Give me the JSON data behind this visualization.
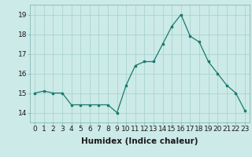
{
  "x": [
    0,
    1,
    2,
    3,
    4,
    5,
    6,
    7,
    8,
    9,
    10,
    11,
    12,
    13,
    14,
    15,
    16,
    17,
    18,
    19,
    20,
    21,
    22,
    23
  ],
  "y": [
    15.0,
    15.1,
    15.0,
    15.0,
    14.4,
    14.4,
    14.4,
    14.4,
    14.4,
    14.0,
    15.4,
    16.4,
    16.6,
    16.6,
    17.5,
    18.4,
    19.0,
    17.9,
    17.6,
    16.6,
    16.0,
    15.4,
    15.0,
    14.1
  ],
  "line_color": "#1a7a6e",
  "marker": "s",
  "marker_size": 2.0,
  "bg_color": "#cceae8",
  "grid_color": "#aad4d0",
  "xlabel": "Humidex (Indice chaleur)",
  "ylim": [
    13.5,
    19.5
  ],
  "yticks": [
    14,
    15,
    16,
    17,
    18,
    19
  ],
  "xticks": [
    0,
    1,
    2,
    3,
    4,
    5,
    6,
    7,
    8,
    9,
    10,
    11,
    12,
    13,
    14,
    15,
    16,
    17,
    18,
    19,
    20,
    21,
    22,
    23
  ],
  "xlabel_fontsize": 7.5,
  "tick_fontsize": 6.5
}
